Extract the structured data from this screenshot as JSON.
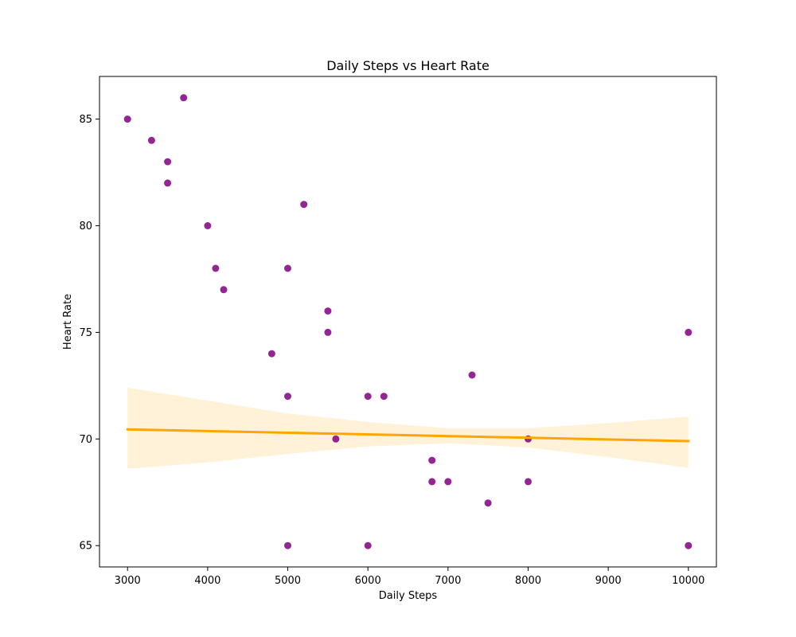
{
  "chart_data": {
    "type": "scatter",
    "title": "Daily Steps vs Heart Rate",
    "xlabel": "Daily Steps",
    "ylabel": "Heart Rate",
    "xlim": [
      2650,
      10350
    ],
    "ylim": [
      64,
      87
    ],
    "xticks": [
      3000,
      4000,
      5000,
      6000,
      7000,
      8000,
      9000,
      10000
    ],
    "yticks": [
      65,
      70,
      75,
      80,
      85
    ],
    "grid": false,
    "colors": {
      "points": "#800080",
      "trend_line": "#ffa500",
      "confidence_band": "#ffa500"
    },
    "points": [
      [
        3000,
        85
      ],
      [
        3300,
        84
      ],
      [
        3500,
        83
      ],
      [
        3500,
        82
      ],
      [
        3700,
        86
      ],
      [
        4000,
        80
      ],
      [
        4100,
        78
      ],
      [
        4200,
        77
      ],
      [
        4800,
        74
      ],
      [
        5000,
        78
      ],
      [
        5000,
        72
      ],
      [
        5000,
        65
      ],
      [
        5200,
        81
      ],
      [
        5500,
        76
      ],
      [
        5500,
        75
      ],
      [
        5600,
        70
      ],
      [
        6000,
        72
      ],
      [
        6000,
        65
      ],
      [
        6200,
        72
      ],
      [
        6800,
        69
      ],
      [
        6800,
        68
      ],
      [
        7000,
        68
      ],
      [
        7300,
        73
      ],
      [
        7500,
        67
      ],
      [
        8000,
        70
      ],
      [
        8000,
        68
      ],
      [
        10000,
        75
      ],
      [
        10000,
        65
      ]
    ],
    "trend_line": {
      "x": [
        3000,
        10000
      ],
      "y": [
        70.45,
        69.9
      ]
    },
    "confidence_band": {
      "x": [
        3000,
        4000,
        5000,
        6000,
        7000,
        8000,
        9000,
        10000
      ],
      "upper": [
        72.4,
        71.8,
        71.2,
        70.8,
        70.5,
        70.5,
        70.75,
        71.05
      ],
      "lower": [
        68.6,
        68.9,
        69.3,
        69.65,
        69.8,
        69.6,
        69.15,
        68.65
      ]
    }
  }
}
